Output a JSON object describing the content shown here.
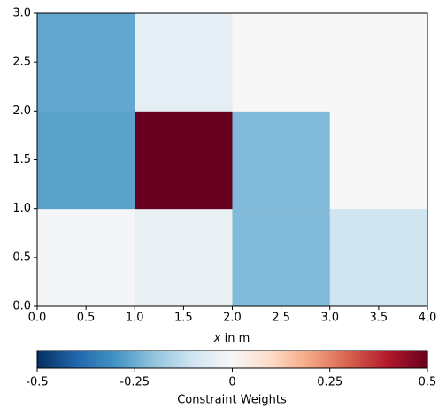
{
  "chart_data": {
    "type": "heatmap",
    "xlabel_var": "x",
    "xlabel": " in m",
    "colorbar_label": "Constraint Weights",
    "xbins": [
      0,
      1,
      2,
      3,
      4
    ],
    "ybins": [
      0,
      1,
      2,
      3
    ],
    "z": [
      [
        -0.01,
        -0.04,
        -0.22,
        -0.1
      ],
      [
        -0.27,
        0.5,
        -0.22,
        0.0
      ],
      [
        -0.26,
        -0.05,
        0.0,
        0.0
      ]
    ],
    "xlim": [
      0,
      4
    ],
    "ylim": [
      0,
      3
    ],
    "xticks": [
      {
        "value": 0,
        "label": "0.0"
      },
      {
        "value": 0.5,
        "label": "0.5"
      },
      {
        "value": 1,
        "label": "1.0"
      },
      {
        "value": 1.5,
        "label": "1.5"
      },
      {
        "value": 2,
        "label": "2.0"
      },
      {
        "value": 2.5,
        "label": "2.5"
      },
      {
        "value": 3,
        "label": "3.0"
      },
      {
        "value": 3.5,
        "label": "3.5"
      },
      {
        "value": 4,
        "label": "4.0"
      }
    ],
    "yticks": [
      {
        "value": 0,
        "label": "0.0"
      },
      {
        "value": 0.5,
        "label": "0.5"
      },
      {
        "value": 1,
        "label": "1.0"
      },
      {
        "value": 1.5,
        "label": "1.5"
      },
      {
        "value": 2,
        "label": "2.0"
      },
      {
        "value": 2.5,
        "label": "2.5"
      },
      {
        "value": 3,
        "label": "3.0"
      }
    ],
    "clim": [
      -0.5,
      0.5
    ],
    "cticks": [
      -0.5,
      -0.25,
      0,
      0.25,
      0.5
    ],
    "colormap": [
      "#053061",
      "#2166ac",
      "#4393c3",
      "#92c5de",
      "#d1e5f0",
      "#f7f7f7",
      "#fddbc7",
      "#f4a582",
      "#d6604d",
      "#b2182b",
      "#67001f"
    ]
  }
}
